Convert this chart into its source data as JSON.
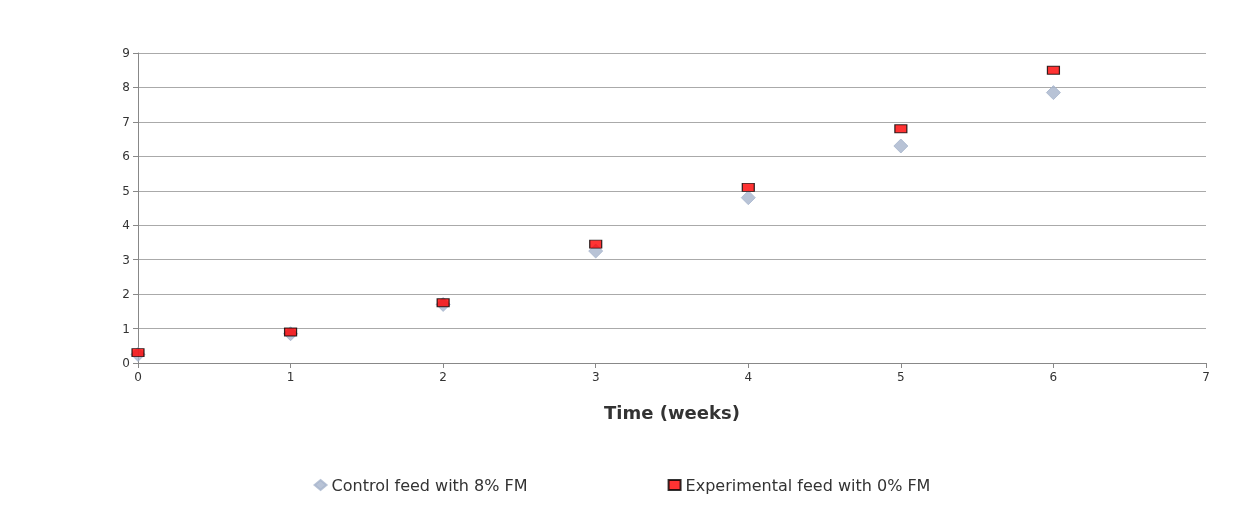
{
  "chart_data": {
    "type": "scatter",
    "xlabel": "Time (weeks)",
    "xlim": [
      0,
      7
    ],
    "xticks": [
      0,
      1,
      2,
      3,
      4,
      5,
      6,
      7
    ],
    "ylim": [
      0,
      9
    ],
    "yticks": [
      0,
      1,
      2,
      3,
      4,
      5,
      6,
      7,
      8,
      9
    ],
    "grid": "y",
    "legend": "bottom",
    "series": [
      {
        "name": "Control feed with 8% FM",
        "color": "#a6b4cc",
        "marker": "diamond",
        "x": [
          0,
          1,
          2,
          3,
          4,
          5,
          6
        ],
        "values": [
          0.25,
          0.85,
          1.7,
          3.25,
          4.8,
          6.3,
          7.85
        ]
      },
      {
        "name": "Experimental feed with 0% FM",
        "color": "#ff0000",
        "marker": "square",
        "x": [
          0,
          1,
          2,
          3,
          4,
          5,
          6
        ],
        "values": [
          0.3,
          0.9,
          1.75,
          3.45,
          5.1,
          6.8,
          8.5
        ]
      }
    ]
  }
}
